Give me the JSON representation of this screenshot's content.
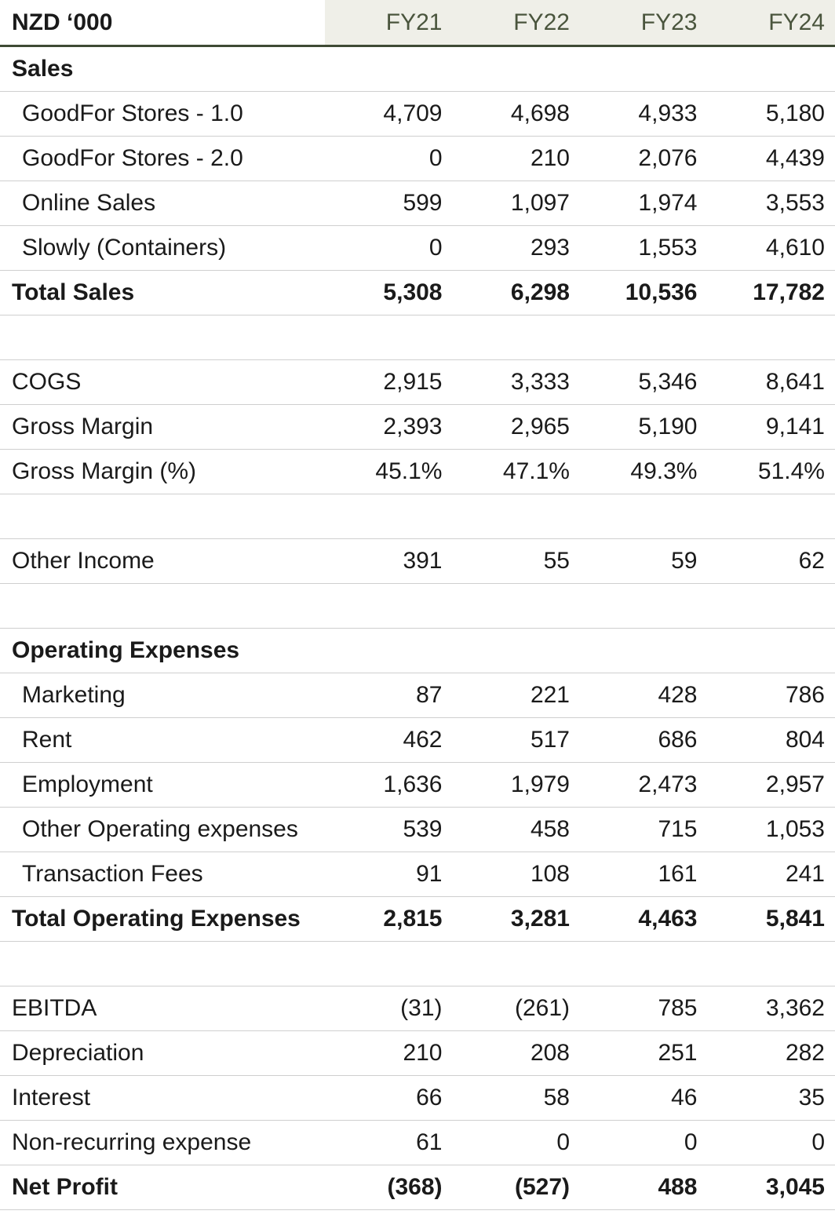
{
  "header": {
    "unit_label": "NZD ‘000",
    "years": [
      "FY21",
      "FY22",
      "FY23",
      "FY24"
    ]
  },
  "sections": {
    "sales_title": "Sales",
    "opex_title": "Operating Expenses"
  },
  "rows": {
    "goodfor_1": {
      "label": "GoodFor Stores - 1.0",
      "values": [
        "4,709",
        "4,698",
        "4,933",
        "5,180"
      ]
    },
    "goodfor_2": {
      "label": "GoodFor Stores - 2.0",
      "values": [
        "0",
        "210",
        "2,076",
        "4,439"
      ]
    },
    "online_sales": {
      "label": "Online Sales",
      "values": [
        "599",
        "1,097",
        "1,974",
        "3,553"
      ]
    },
    "slowly": {
      "label": "Slowly (Containers)",
      "values": [
        "0",
        "293",
        "1,553",
        "4,610"
      ]
    },
    "total_sales": {
      "label": "Total Sales",
      "values": [
        "5,308",
        "6,298",
        "10,536",
        "17,782"
      ]
    },
    "cogs": {
      "label": "COGS",
      "values": [
        "2,915",
        "3,333",
        "5,346",
        "8,641"
      ]
    },
    "gross_margin": {
      "label": "Gross Margin",
      "values": [
        "2,393",
        "2,965",
        "5,190",
        "9,141"
      ]
    },
    "gross_margin_pct": {
      "label": "Gross Margin (%)",
      "values": [
        "45.1%",
        "47.1%",
        "49.3%",
        "51.4%"
      ]
    },
    "other_income": {
      "label": "Other Income",
      "values": [
        "391",
        "55",
        "59",
        "62"
      ]
    },
    "marketing": {
      "label": "Marketing",
      "values": [
        "87",
        "221",
        "428",
        "786"
      ]
    },
    "rent": {
      "label": "Rent",
      "values": [
        "462",
        "517",
        "686",
        "804"
      ]
    },
    "employment": {
      "label": "Employment",
      "values": [
        "1,636",
        "1,979",
        "2,473",
        "2,957"
      ]
    },
    "other_opex": {
      "label": "Other Operating expenses",
      "values": [
        "539",
        "458",
        "715",
        "1,053"
      ]
    },
    "transaction_fees": {
      "label": "Transaction Fees",
      "values": [
        "91",
        "108",
        "161",
        "241"
      ]
    },
    "total_opex": {
      "label": "Total Operating Expenses",
      "values": [
        "2,815",
        "3,281",
        "4,463",
        "5,841"
      ]
    },
    "ebitda": {
      "label": "EBITDA",
      "values": [
        "(31)",
        "(261)",
        "785",
        "3,362"
      ]
    },
    "depreciation": {
      "label": "Depreciation",
      "values": [
        "210",
        "208",
        "251",
        "282"
      ]
    },
    "interest": {
      "label": "Interest",
      "values": [
        "66",
        "58",
        "46",
        "35"
      ]
    },
    "non_recurring": {
      "label": "Non-recurring expense",
      "values": [
        "61",
        "0",
        "0",
        "0"
      ]
    },
    "net_profit": {
      "label": "Net Profit",
      "values": [
        "(368)",
        "(527)",
        "488",
        "3,045"
      ]
    }
  },
  "colors": {
    "header_band": "#efefe8",
    "header_rule": "#3f4a35",
    "row_rule": "#cfcfcf"
  }
}
